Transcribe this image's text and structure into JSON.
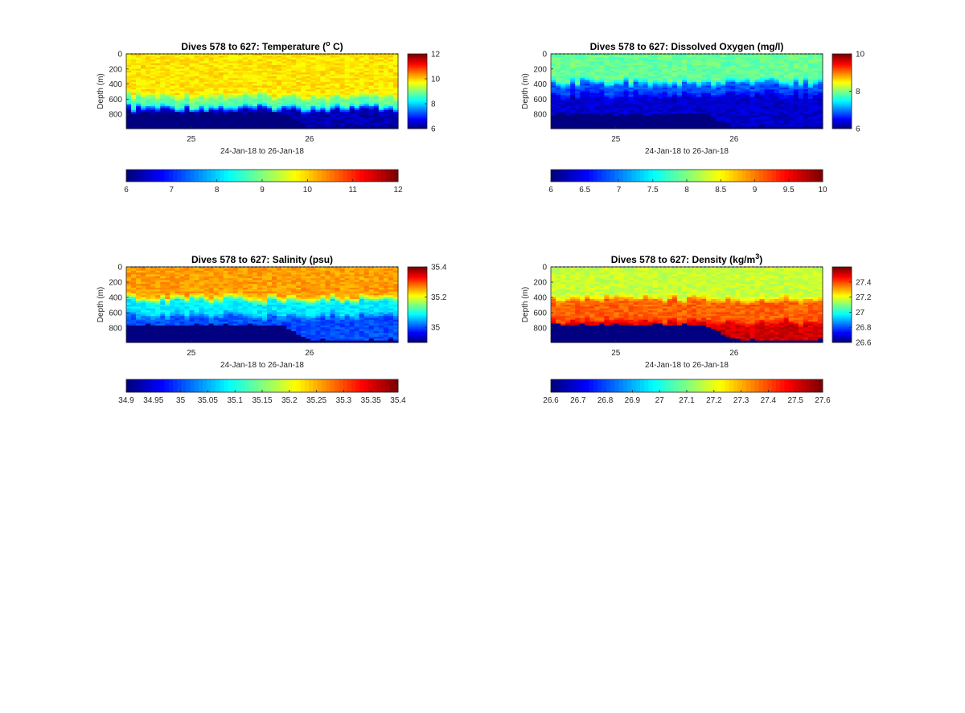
{
  "chart_data": [
    {
      "type": "heatmap",
      "title_prefix": "Dives 578 to 627: Temperature (",
      "title_sup": "o",
      "title_suffix": " C)",
      "xlabel": "24-Jan-18 to 26-Jan-18",
      "ylabel": "Depth (m)",
      "x_ticks": [
        "25",
        "26"
      ],
      "x_tick_values": [
        25,
        26
      ],
      "xlim": [
        24.45,
        26.75
      ],
      "y_ticks": [
        "0",
        "200",
        "400",
        "600",
        "800"
      ],
      "y_tick_values": [
        0,
        200,
        400,
        600,
        800
      ],
      "ylim": [
        0,
        990
      ],
      "y_reversed": true,
      "variable": "temperature",
      "clim": [
        6,
        12
      ],
      "side_colorbar_ticks": [
        "6",
        "8",
        "10",
        "12"
      ],
      "bottom_colorbar_ticks": [
        "6",
        "7",
        "8",
        "9",
        "10",
        "11",
        "12"
      ],
      "colormap": "jet",
      "profile": {
        "surface": 9.9,
        "mid": 8.8,
        "deep": 6.3,
        "bottom_fill": 6.0
      },
      "transition_depth_m": [
        560,
        700
      ],
      "seafloor_depth_m_start": 780,
      "seafloor_depth_m_end": 960
    },
    {
      "type": "heatmap",
      "title_prefix": "Dives 578 to 627: Dissolved Oxygen (mg/l)",
      "title_sup": "",
      "title_suffix": "",
      "xlabel": "24-Jan-18 to 26-Jan-18",
      "ylabel": "Depth (m)",
      "x_ticks": [
        "25",
        "26"
      ],
      "x_tick_values": [
        25,
        26
      ],
      "xlim": [
        24.45,
        26.75
      ],
      "y_ticks": [
        "0",
        "200",
        "400",
        "600",
        "800"
      ],
      "y_tick_values": [
        0,
        200,
        400,
        600,
        800
      ],
      "ylim": [
        0,
        990
      ],
      "y_reversed": true,
      "variable": "dissolved_oxygen",
      "clim": [
        6,
        10
      ],
      "side_colorbar_ticks": [
        "6",
        "8",
        "10"
      ],
      "bottom_colorbar_ticks": [
        "6",
        "6.5",
        "7",
        "7.5",
        "8",
        "8.5",
        "9",
        "9.5",
        "10"
      ],
      "colormap": "jet",
      "profile": {
        "surface": 7.9,
        "mid": 6.8,
        "deep": 6.3,
        "bottom_fill": 6.0
      },
      "transition_depth_m": [
        380,
        520
      ],
      "seafloor_depth_m_start": 800,
      "seafloor_depth_m_end": 960
    },
    {
      "type": "heatmap",
      "title_prefix": "Dives 578 to 627: Salinity (psu)",
      "title_sup": "",
      "title_suffix": "",
      "xlabel": "24-Jan-18 to 26-Jan-18",
      "ylabel": "Depth (m)",
      "x_ticks": [
        "25",
        "26"
      ],
      "x_tick_values": [
        25,
        26
      ],
      "xlim": [
        24.45,
        26.75
      ],
      "y_ticks": [
        "0",
        "200",
        "400",
        "600",
        "800"
      ],
      "y_tick_values": [
        0,
        200,
        400,
        600,
        800
      ],
      "ylim": [
        0,
        990
      ],
      "y_reversed": true,
      "variable": "salinity",
      "clim": [
        34.9,
        35.4
      ],
      "side_colorbar_ticks": [
        "35",
        "35.2",
        "35.4"
      ],
      "bottom_colorbar_ticks": [
        "34.9",
        "34.95",
        "35",
        "35.05",
        "35.1",
        "35.15",
        "35.2",
        "35.25",
        "35.3",
        "35.35",
        "35.4"
      ],
      "colormap": "jet",
      "profile": {
        "surface": 35.26,
        "mid": 35.08,
        "deep": 35.0,
        "bottom_fill": 34.9
      },
      "transition_depth_m": [
        420,
        620
      ],
      "seafloor_depth_m_start": 760,
      "seafloor_depth_m_end": 960
    },
    {
      "type": "heatmap",
      "title_prefix": "Dives 578 to 627: Density (kg/m",
      "title_sup": "3",
      "title_suffix": ")",
      "xlabel": "24-Jan-18 to 26-Jan-18",
      "ylabel": "Depth (m)",
      "x_ticks": [
        "25",
        "26"
      ],
      "x_tick_values": [
        25,
        26
      ],
      "xlim": [
        24.45,
        26.75
      ],
      "y_ticks": [
        "0",
        "200",
        "400",
        "600",
        "800"
      ],
      "y_tick_values": [
        0,
        200,
        400,
        600,
        800
      ],
      "ylim": [
        0,
        990
      ],
      "y_reversed": true,
      "variable": "density",
      "clim": [
        26.6,
        27.6
      ],
      "side_colorbar_ticks": [
        "26.6",
        "26.8",
        "27",
        "27.2",
        "27.4"
      ],
      "bottom_colorbar_ticks": [
        "26.6",
        "26.7",
        "26.8",
        "26.9",
        "27",
        "27.1",
        "27.2",
        "27.3",
        "27.4",
        "27.5",
        "27.6"
      ],
      "colormap": "jet",
      "profile": {
        "surface": 27.17,
        "mid": 27.38,
        "deep": 27.52,
        "bottom_fill": 26.6
      },
      "transition_depth_m": [
        420,
        700
      ],
      "seafloor_depth_m_start": 760,
      "seafloor_depth_m_end": 960
    }
  ]
}
